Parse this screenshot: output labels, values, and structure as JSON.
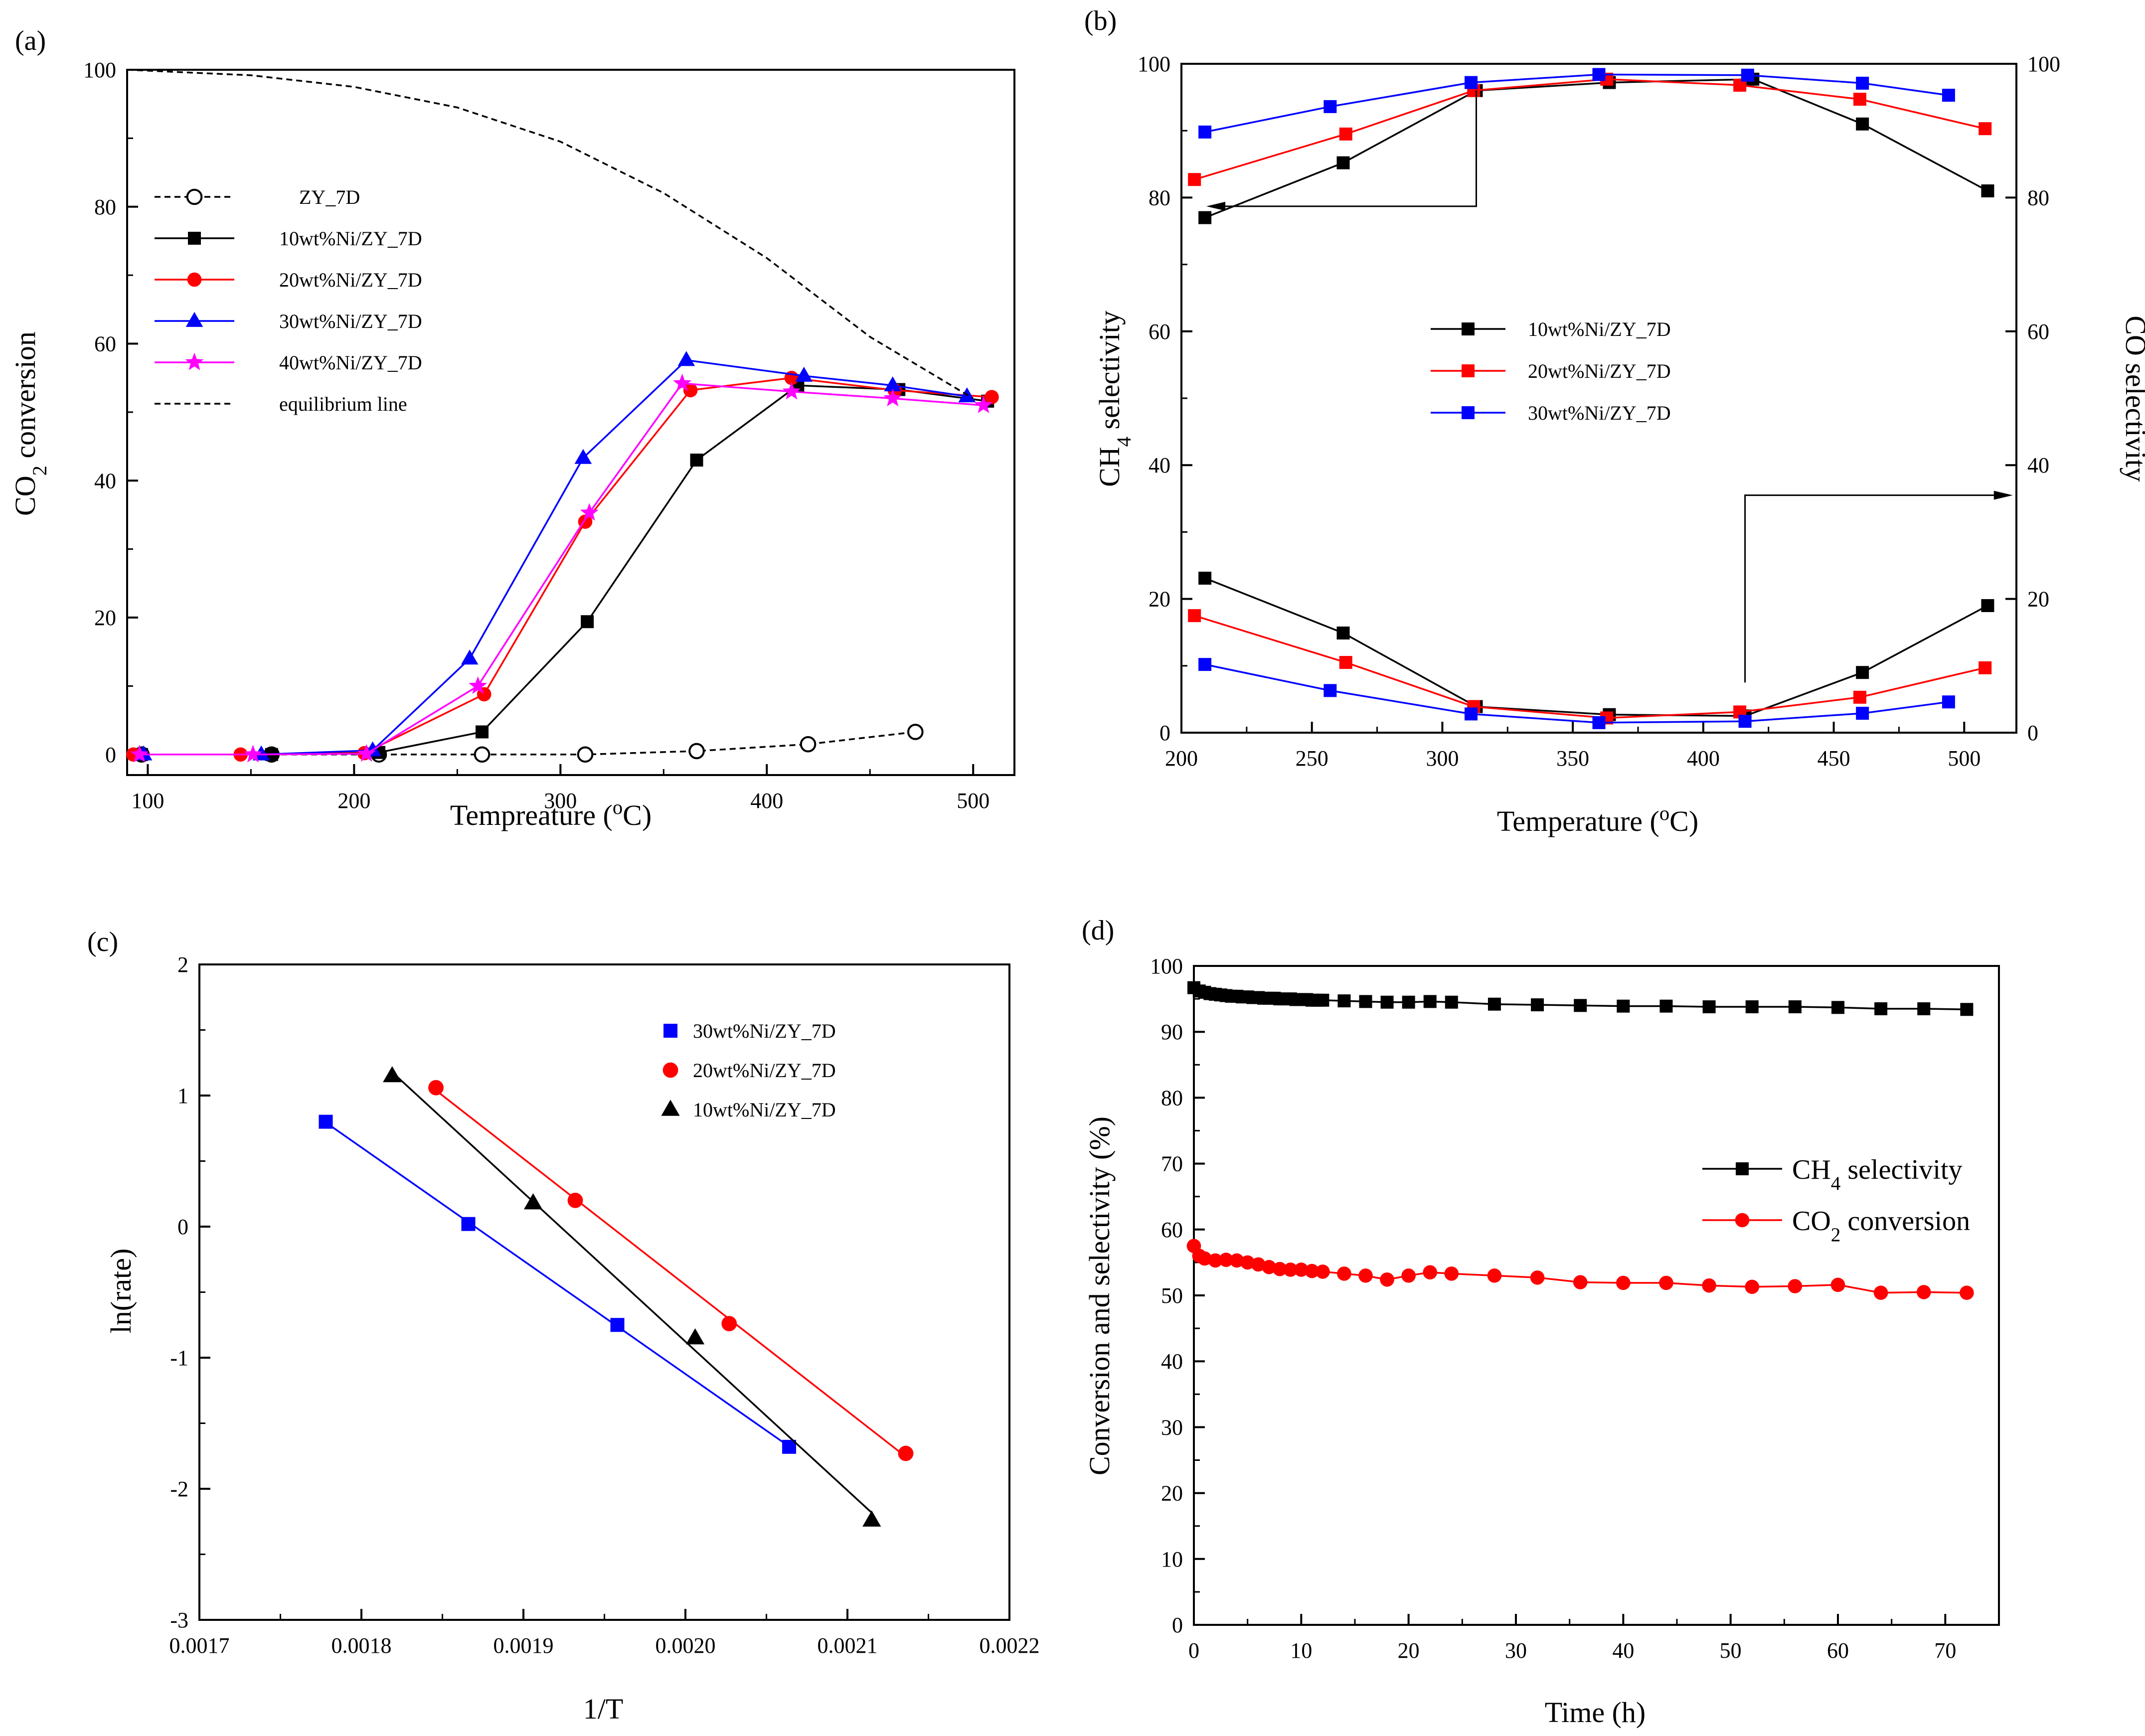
{
  "chart_data": [
    {
      "type": "line",
      "panel_label": "(a)",
      "xlabel": "Tempreature (",
      "xlabel_unit": "C)",
      "xlabel_super": "o",
      "ylabel": "CO",
      "ylabel_sub": "2",
      "ylabel_rest": " conversion",
      "xlim": [
        90,
        520
      ],
      "ylim": [
        -3,
        100
      ],
      "xticks": [
        100,
        200,
        300,
        400,
        500
      ],
      "yticks": [
        0,
        20,
        40,
        60,
        80,
        100
      ],
      "legend_position": "upper-left",
      "series": [
        {
          "name": "ZY_7D",
          "color": "#000000",
          "marker": "open-circle",
          "dash": true,
          "x": [
            97,
            160,
            212,
            262,
            312,
            366,
            420,
            472
          ],
          "y": [
            0,
            0,
            0,
            0,
            0,
            0.5,
            1.5,
            3.3
          ]
        },
        {
          "name": "10wt%Ni/ZY_7D",
          "color": "#000000",
          "marker": "square",
          "x": [
            97,
            160,
            212,
            262,
            313,
            366,
            415,
            464,
            507
          ],
          "y": [
            0,
            0,
            0.3,
            3.3,
            19.4,
            43,
            53.9,
            53.3,
            51.6
          ]
        },
        {
          "name": "20wt%Ni/ZY_7D",
          "color": "#ff0000",
          "marker": "circle",
          "x": [
            93,
            145,
            205,
            263,
            312,
            363,
            412,
            462,
            509
          ],
          "y": [
            0,
            0,
            0.2,
            8.8,
            34,
            53.2,
            55,
            53.2,
            52.2
          ]
        },
        {
          "name": "30wt%Ni/ZY_7D",
          "color": "#0000ff",
          "marker": "triangle",
          "x": [
            98,
            155,
            209,
            256,
            311,
            361,
            418,
            461,
            497
          ],
          "y": [
            0,
            0,
            0.6,
            14,
            43.3,
            57.6,
            55.3,
            53.9,
            52.3
          ]
        },
        {
          "name": "40wt%Ni/ZY_7D",
          "color": "#ff00ff",
          "marker": "star",
          "x": [
            96,
            151,
            206,
            260,
            314,
            359,
            412,
            461,
            505
          ],
          "y": [
            0,
            0,
            0.1,
            10,
            35.3,
            54.2,
            53,
            52,
            51
          ]
        },
        {
          "name": "equilibrium line",
          "color": "#000000",
          "marker": "none",
          "dash": true,
          "x": [
            90,
            150,
            200,
            250,
            300,
            350,
            400,
            450,
            500
          ],
          "y": [
            100,
            99.2,
            97.5,
            94.5,
            89.5,
            82,
            72.5,
            61,
            52
          ]
        }
      ]
    },
    {
      "type": "line",
      "panel_label": "(b)",
      "xlabel": "Temperature (",
      "xlabel_unit": "C)",
      "xlabel_super": "o",
      "ylabel": "CH",
      "ylabel_sub": "4",
      "ylabel_rest": " selectivity",
      "ylabel_right": "CO selectivity",
      "xlim": [
        200,
        520
      ],
      "ylim": [
        0,
        100
      ],
      "xticks": [
        200,
        250,
        300,
        350,
        400,
        450,
        500
      ],
      "yticks": [
        0,
        20,
        40,
        60,
        80,
        100
      ],
      "legend_position": "center-left",
      "series": [
        {
          "name": "10wt%Ni/ZY_7D",
          "color": "#000000",
          "marker": "square",
          "x": [
            209,
            262,
            313,
            364,
            419,
            461,
            509
          ],
          "y": [
            77,
            85.2,
            96,
            97.2,
            97.7,
            91,
            81
          ]
        },
        {
          "name": "20wt%Ni/ZY_7D",
          "color": "#ff0000",
          "marker": "square",
          "x": [
            205,
            263,
            312,
            363,
            414,
            460,
            508
          ],
          "y": [
            82.7,
            89.5,
            96,
            97.7,
            96.8,
            94.7,
            90.3
          ]
        },
        {
          "name": "30wt%Ni/ZY_7D",
          "color": "#0000ff",
          "marker": "square",
          "x": [
            209,
            257,
            311,
            360,
            417,
            461,
            494
          ],
          "y": [
            89.8,
            93.6,
            97.2,
            98.4,
            98.3,
            97.1,
            95.3
          ]
        }
      ],
      "co_series": [
        {
          "name": "10wt%Ni/ZY_7D",
          "color": "#000000",
          "x": [
            209,
            262,
            313,
            364,
            416,
            461,
            509
          ],
          "y": [
            23.1,
            14.9,
            3.9,
            2.7,
            2.5,
            9,
            19
          ]
        },
        {
          "name": "20wt%Ni/ZY_7D",
          "color": "#ff0000",
          "x": [
            205,
            263,
            312,
            363,
            414,
            460,
            508
          ],
          "y": [
            17.5,
            10.5,
            3.9,
            2.2,
            3.1,
            5.3,
            9.7
          ]
        },
        {
          "name": "30wt%Ni/ZY_7D",
          "color": "#0000ff",
          "x": [
            209,
            257,
            311,
            360,
            416,
            461,
            494
          ],
          "y": [
            10.2,
            6.3,
            2.8,
            1.5,
            1.7,
            2.9,
            4.6
          ]
        }
      ]
    },
    {
      "type": "scatter",
      "panel_label": "(c)",
      "xlabel": "1/T",
      "ylabel": "ln(rate)",
      "xlim": [
        0.0017,
        0.0022
      ],
      "ylim": [
        -3,
        2
      ],
      "xticks": [
        "0.0017",
        "0.0018",
        "0.0019",
        "0.0020",
        "0.0021",
        "0.0022"
      ],
      "yticks": [
        -3,
        -2,
        -1,
        0,
        1,
        2
      ],
      "legend_position": "top-right",
      "series": [
        {
          "name": "30wt%Ni/ZY_7D",
          "color": "#0000ff",
          "marker": "square",
          "x": [
            0.001778,
            0.001866,
            0.001958,
            0.002064
          ],
          "y": [
            0.8,
            0.02,
            -0.75,
            -1.68
          ]
        },
        {
          "name": "20wt%Ni/ZY_7D",
          "color": "#ff0000",
          "marker": "circle",
          "x": [
            0.001846,
            0.001932,
            0.002027,
            0.002136
          ],
          "y": [
            1.06,
            0.2,
            -0.74,
            -1.73
          ]
        },
        {
          "name": "10wt%Ni/ZY_7D",
          "color": "#000000",
          "marker": "triangle",
          "x": [
            0.001819,
            0.001906,
            0.002006,
            0.002115
          ],
          "y": [
            1.15,
            0.18,
            -0.85,
            -2.24
          ]
        }
      ]
    },
    {
      "type": "line",
      "panel_label": "(d)",
      "xlabel": "Time (h)",
      "ylabel": "Conversion and selectivity (%)",
      "xlim": [
        0,
        75
      ],
      "ylim": [
        0,
        100
      ],
      "xticks": [
        0,
        10,
        20,
        30,
        40,
        50,
        60,
        70
      ],
      "yticks": [
        0,
        10,
        20,
        30,
        40,
        50,
        60,
        70,
        80,
        90,
        100
      ],
      "legend_position": "center-right",
      "series": [
        {
          "name": "CH4 selectivity",
          "label_main": "CH",
          "label_sub": "4",
          "label_rest": " selectivity",
          "color": "#000000",
          "marker": "square",
          "x": [
            0,
            0.5,
            1,
            1.5,
            2,
            2.5,
            3,
            3.5,
            4,
            4.5,
            5,
            5.5,
            6,
            6.5,
            7,
            7.5,
            8,
            8.5,
            9,
            9.5,
            10,
            10.5,
            11,
            11.5,
            12,
            14,
            16,
            18,
            20,
            22,
            24,
            28,
            32,
            36,
            40,
            44,
            48,
            52,
            56,
            60,
            64,
            68,
            72
          ],
          "y": [
            96.7,
            96.2,
            96,
            95.8,
            95.7,
            95.6,
            95.5,
            95.4,
            95.4,
            95.3,
            95.3,
            95.2,
            95.2,
            95.1,
            95.1,
            95.1,
            95,
            95,
            95,
            94.9,
            94.9,
            94.9,
            94.8,
            94.8,
            94.8,
            94.7,
            94.6,
            94.5,
            94.5,
            94.6,
            94.5,
            94.2,
            94.1,
            94,
            93.9,
            93.9,
            93.8,
            93.8,
            93.8,
            93.7,
            93.5,
            93.5,
            93.4
          ]
        },
        {
          "name": "CO2 conversion",
          "label_main": "CO",
          "label_sub": "2",
          "label_rest": " conversion",
          "color": "#ff0000",
          "marker": "circle",
          "x": [
            0,
            0.5,
            1,
            2,
            3,
            4,
            5,
            6,
            7,
            8,
            9,
            10,
            11,
            12,
            14,
            16,
            18,
            20,
            22,
            24,
            28,
            32,
            36,
            40,
            44,
            48,
            52,
            56,
            60,
            64,
            68,
            72
          ],
          "y": [
            57.5,
            56,
            55.6,
            55.3,
            55.4,
            55.3,
            55,
            54.7,
            54.3,
            54,
            53.9,
            53.9,
            53.7,
            53.6,
            53.3,
            53,
            52.4,
            53,
            53.5,
            53.3,
            53,
            52.7,
            52,
            51.9,
            51.9,
            51.5,
            51.3,
            51.4,
            51.6,
            50.4,
            50.5,
            50.4
          ]
        }
      ]
    }
  ]
}
